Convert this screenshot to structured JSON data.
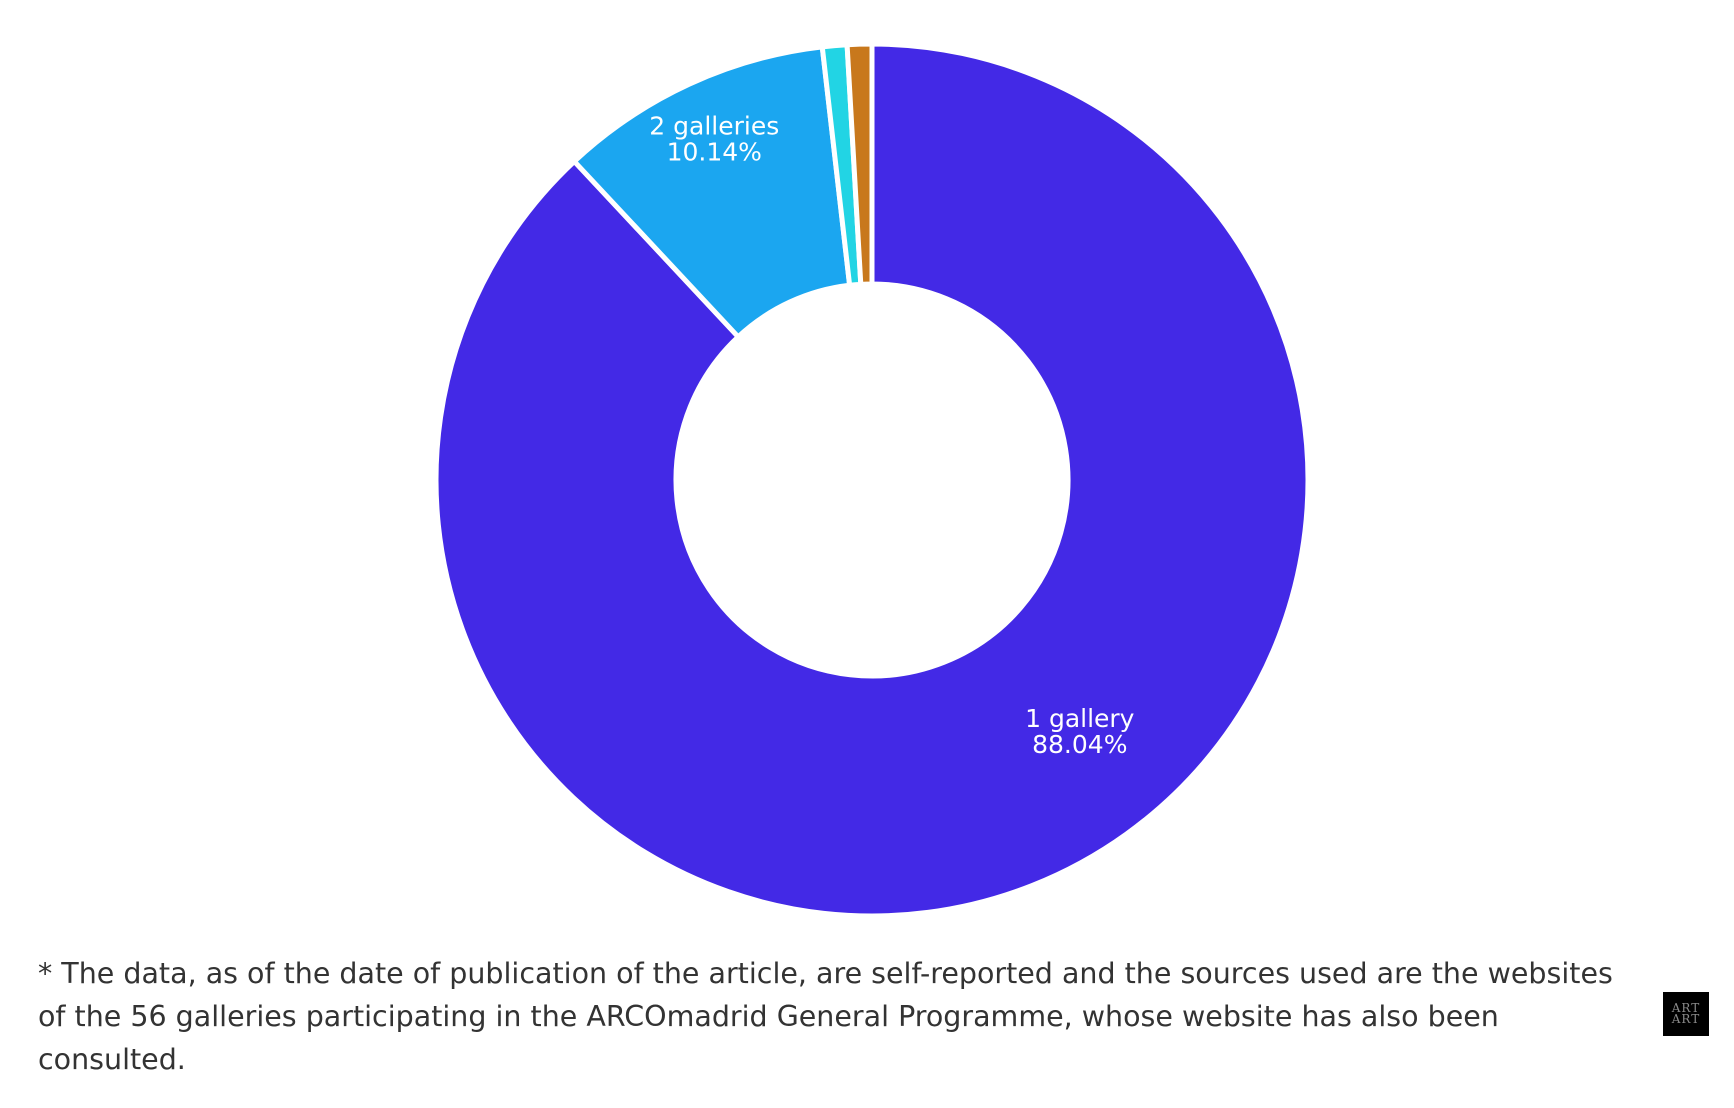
{
  "chart_data": {
    "type": "donut",
    "title": "",
    "series": [
      {
        "values": [
          88.04,
          10.14,
          0.91,
          0.91
        ],
        "labels": [
          "1 gallery",
          "2 galleries",
          "",
          ""
        ],
        "value_labels": [
          "88.04%",
          "10.14%",
          "",
          ""
        ],
        "colors": [
          "#4329E6",
          "#1BA6F0",
          "#22D4E4",
          "#C8781C"
        ]
      }
    ],
    "legend": "none",
    "start": "top",
    "direction": "clockwise"
  },
  "footnote": "* The data, as of the date of publication of the article, are self-reported and the sources used are the websites of the 56 galleries participating in the ARCOmadrid General Programme, whose website has also been consulted.",
  "logo": {
    "line1": "ART",
    "line2": "ART"
  }
}
